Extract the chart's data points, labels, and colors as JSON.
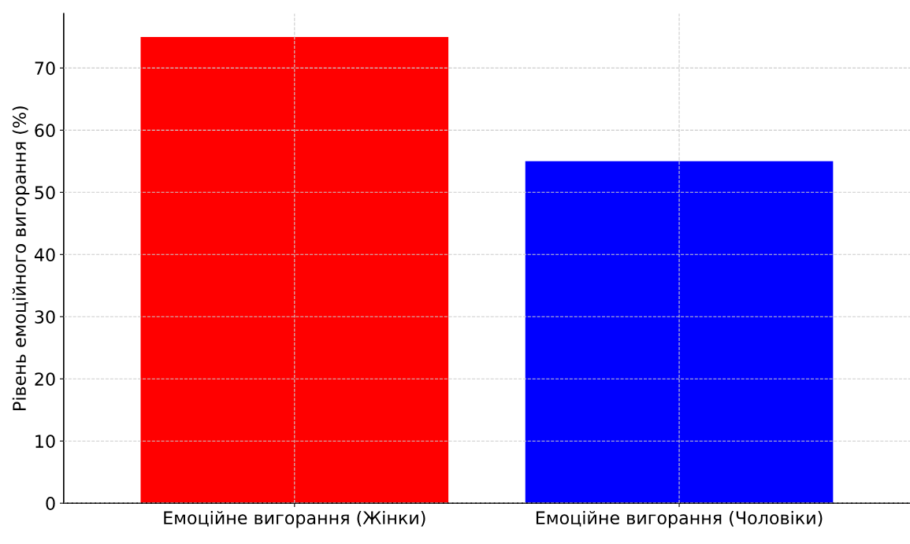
{
  "chart_data": {
    "type": "bar",
    "ylabel": "Рівень емоційного вигорання (%)",
    "categories": [
      "Емоційне вигорання (Жінки)",
      "Емоційне вигорання (Чоловіки)"
    ],
    "values": [
      75,
      55
    ],
    "colors": [
      "#ff0000",
      "#0000ff"
    ],
    "ylim": [
      0,
      78.75
    ],
    "yticks": [
      0,
      10,
      20,
      30,
      40,
      50,
      60,
      70
    ],
    "grid": true
  }
}
